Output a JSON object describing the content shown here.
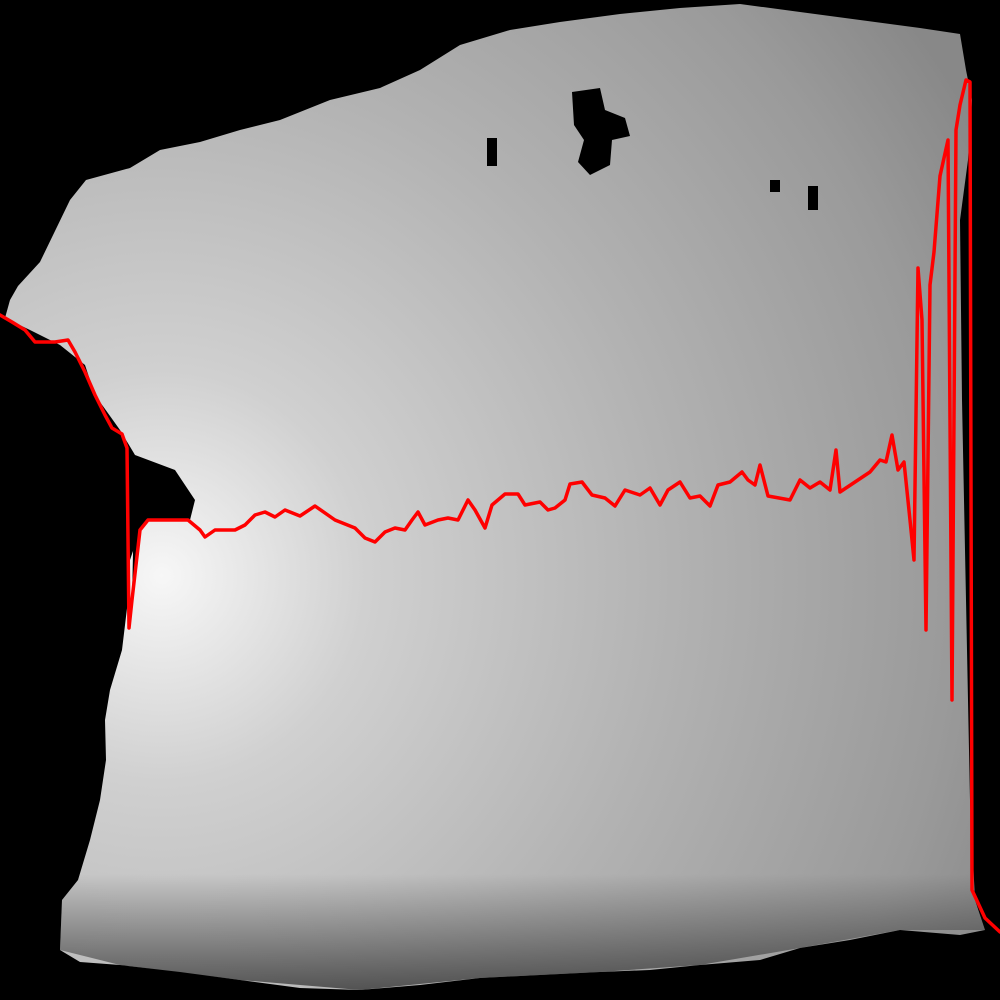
{
  "image": {
    "background_color": "#000000",
    "surface_colors": {
      "highlight": "#f7f7f7",
      "light": "#cfcfcf",
      "mid": "#a8a8a8",
      "dark": "#4a4a4a"
    },
    "profile_line_color": "#ff0000"
  }
}
